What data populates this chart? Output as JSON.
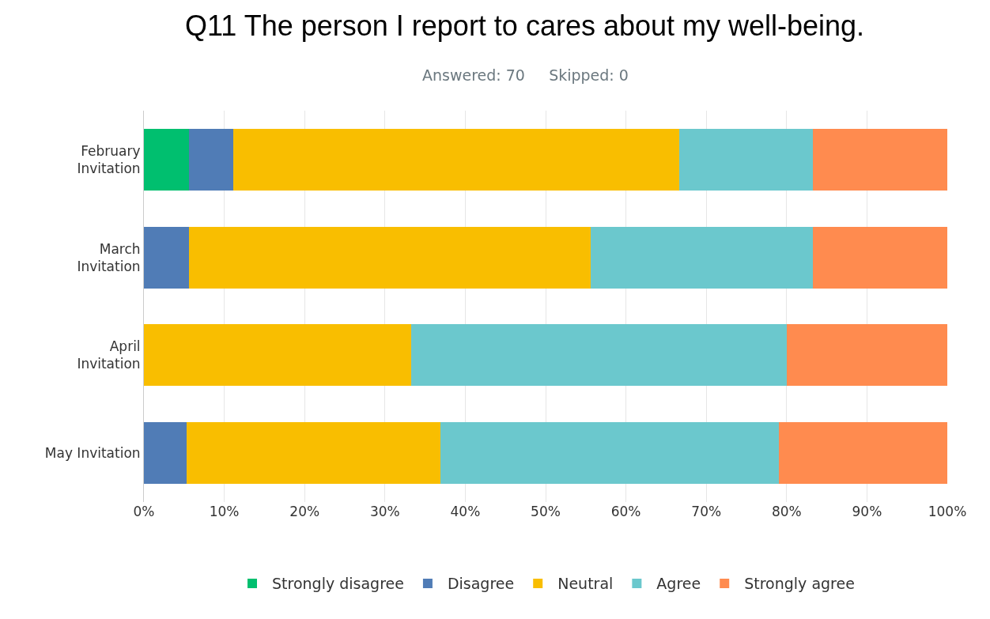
{
  "chart_data": {
    "type": "bar",
    "orientation": "horizontal",
    "stacked": true,
    "title": "Q11 The person I report to cares about my well-being.",
    "subtitle": "Answered: 70     Skipped: 0",
    "categories": [
      "February Invitation",
      "March Invitation",
      "April Invitation",
      "May Invitation"
    ],
    "series": [
      {
        "name": "Strongly disagree",
        "color": "#00bf6f",
        "values": [
          5.6,
          0,
          0,
          0
        ]
      },
      {
        "name": "Disagree",
        "color": "#507cb6",
        "values": [
          5.5,
          5.6,
          0,
          5.3
        ]
      },
      {
        "name": "Neutral",
        "color": "#f9be00",
        "values": [
          55.5,
          50,
          33.3,
          31.6
        ]
      },
      {
        "name": "Agree",
        "color": "#6bc8cd",
        "values": [
          16.7,
          27.7,
          46.7,
          42.1
        ]
      },
      {
        "name": "Strongly agree",
        "color": "#ff8b4f",
        "values": [
          16.7,
          16.7,
          20,
          21
        ]
      }
    ],
    "xlim": [
      0,
      100
    ],
    "xticks": [
      {
        "value": 0,
        "label": "0%"
      },
      {
        "value": 10,
        "label": "10%"
      },
      {
        "value": 20,
        "label": "20%"
      },
      {
        "value": 30,
        "label": "30%"
      },
      {
        "value": 40,
        "label": "40%"
      },
      {
        "value": 50,
        "label": "50%"
      },
      {
        "value": 60,
        "label": "60%"
      },
      {
        "value": 70,
        "label": "70%"
      },
      {
        "value": 80,
        "label": "80%"
      },
      {
        "value": 90,
        "label": "90%"
      },
      {
        "value": 100,
        "label": "100%"
      }
    ],
    "grid": "x",
    "legend": "bottom"
  }
}
